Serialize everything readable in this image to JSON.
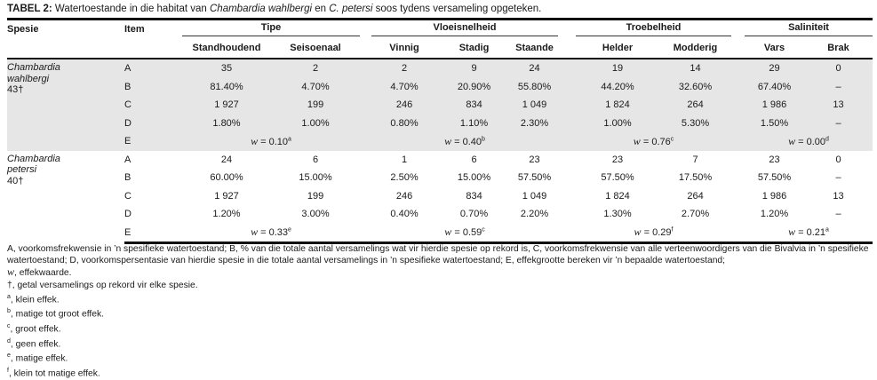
{
  "title": {
    "label": "TABEL 2:",
    "text_1": " Watertoestande in die habitat van ",
    "species_1": "Chambardia wahlbergi",
    "text_2": " en ",
    "species_2": "C. petersi",
    "text_3": " soos tydens versameling opgeteken."
  },
  "headers": {
    "spesie": "Spesie",
    "item": "Item",
    "groups": [
      "Tipe",
      "Vloeisnelheid",
      "Troebelheid",
      "Saliniteit"
    ],
    "columns": [
      "Standhoudend",
      "Seisoenaal",
      "Vinnig",
      "Stadig",
      "Staande",
      "Helder",
      "Modderig",
      "Vars",
      "Brak"
    ]
  },
  "species": [
    {
      "name_1": "Chambardia",
      "name_2": "wahlbergi",
      "count": "43†",
      "rows": [
        {
          "item": "A",
          "values": [
            "35",
            "2",
            "2",
            "9",
            "24",
            "19",
            "14",
            "29",
            "0"
          ]
        },
        {
          "item": "B",
          "values": [
            "81.40%",
            "4.70%",
            "4.70%",
            "20.90%",
            "55.80%",
            "44.20%",
            "32.60%",
            "67.40%",
            "–"
          ]
        },
        {
          "item": "C",
          "values": [
            "1 927",
            "199",
            "246",
            "834",
            "1 049",
            "1 824",
            "264",
            "1 986",
            "13"
          ]
        },
        {
          "item": "D",
          "values": [
            "1.80%",
            "1.00%",
            "0.80%",
            "1.10%",
            "2.30%",
            "1.00%",
            "5.30%",
            "1.50%",
            "–"
          ]
        }
      ],
      "effect": {
        "item": "E",
        "w_symbol": "w",
        "values": [
          {
            "value": " = 0.10",
            "sup": "a"
          },
          {
            "value": " = 0.40",
            "sup": "b"
          },
          {
            "value": " = 0.76",
            "sup": "c"
          },
          {
            "value": " = 0.00",
            "sup": "d"
          }
        ]
      }
    },
    {
      "name_1": "Chambardia",
      "name_2": "petersi",
      "count": "40†",
      "rows": [
        {
          "item": "A",
          "values": [
            "24",
            "6",
            "1",
            "6",
            "23",
            "23",
            "7",
            "23",
            "0"
          ]
        },
        {
          "item": "B",
          "values": [
            "60.00%",
            "15.00%",
            "2.50%",
            "15.00%",
            "57.50%",
            "57.50%",
            "17.50%",
            "57.50%",
            "–"
          ]
        },
        {
          "item": "C",
          "values": [
            "1 927",
            "199",
            "246",
            "834",
            "1 049",
            "1 824",
            "264",
            "1 986",
            "13"
          ]
        },
        {
          "item": "D",
          "values": [
            "1.20%",
            "3.00%",
            "0.40%",
            "0.70%",
            "2.20%",
            "1.30%",
            "2.70%",
            "1.20%",
            "–"
          ]
        }
      ],
      "effect": {
        "item": "E",
        "w_symbol": "w",
        "values": [
          {
            "value": " = 0.33",
            "sup": "e"
          },
          {
            "value": " = 0.59",
            "sup": "c"
          },
          {
            "value": " = 0.29",
            "sup": "f"
          },
          {
            "value": " = 0.21",
            "sup": "a"
          }
        ]
      }
    }
  ],
  "notes": {
    "legend": "A, voorkomsfrekwensie in ’n spesifieke watertoestand; B, % van die totale aantal versamelings wat vir hierdie spesie op rekord is, C, voorkomsfrekwensie van alle verteenwoordigers van die Bivalvia in ’n spesifieke watertoestand; D, voorkomspersentasie van hierdie spesie in die totale aantal versamelings in ’n spesifieke watertoestand; E, effekgrootte bereken vir ’n bepaalde watertoestand;",
    "w_symbol": "w",
    "w_text": ", effekwaarde.",
    "footnotes": [
      {
        "mark": "†",
        "text": ", getal versamelings op rekord vir elke spesie."
      },
      {
        "mark": "a",
        "text": ", klein effek."
      },
      {
        "mark": "b",
        "text": ", matige tot groot effek."
      },
      {
        "mark": "c",
        "text": ", groot effek."
      },
      {
        "mark": "d",
        "text": ", geen effek."
      },
      {
        "mark": "e",
        "text": ", matige effek."
      },
      {
        "mark": "f",
        "text": ", klein tot matige effek."
      }
    ]
  },
  "colors": {
    "shade": "#e6e6e6",
    "rule": "#111111"
  }
}
